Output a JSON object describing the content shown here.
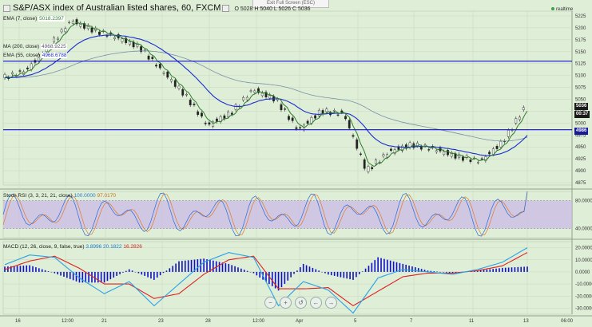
{
  "window": {
    "exit_full_screen": "Exit Full Screen (ESC)",
    "realtime": "realtime"
  },
  "header": {
    "title": "S&P/ASX index of Australian listed shares, 60, FXCM",
    "ohlc": "O 5028 H 5040 L 5026 C 5036"
  },
  "legends": {
    "ema7": {
      "label": "EMA (7, close)",
      "value": "5018.2397"
    },
    "ma200": {
      "label": "MA (200, close)",
      "value": "4968.9225"
    },
    "ema55": {
      "label": "EMA (55, close)",
      "value": "4968.6788"
    },
    "stoch": {
      "label": "Stoch RSI (3, 3, 21, 21, close)",
      "k": "100.0000",
      "d": "97.0170"
    },
    "macd": {
      "label": "MACD (12, 26, close, 9, false, true)",
      "v1": "3.8996",
      "v2": "20.1822",
      "v3": "16.2826"
    }
  },
  "price_axis": {
    "ticks": [
      "5225",
      "5200",
      "5175",
      "5150",
      "5125",
      "5100",
      "5075",
      "5050",
      "5025",
      "5000",
      "4975",
      "4950",
      "4925",
      "4900",
      "4875"
    ],
    "current_price": "5036",
    "countdown": "00:37",
    "line_label": "4986"
  },
  "stoch_axis": {
    "ticks": [
      "80.0000",
      "40.0000"
    ]
  },
  "macd_axis": {
    "ticks": [
      "20.0000",
      "10.0000",
      "0.0000",
      "-10.0000",
      "-20.0000",
      "-30.0000"
    ]
  },
  "time_axis": {
    "labels": [
      "16",
      "12:00",
      "21",
      "23",
      "28",
      "12:00",
      "Apr",
      "5",
      "7",
      "11",
      "13"
    ],
    "end_label": "06:00"
  },
  "nav_buttons": [
    "−",
    "+",
    "↺",
    "←",
    "→"
  ],
  "colors": {
    "background": "#dfeed6",
    "ema7": "#2e7d2e",
    "ema55": "#1a2ecf",
    "ma200": "#7890a8",
    "hline": "#1010c8",
    "stoch_band": "#c9b7e8",
    "macd_line": "#2aa3e8",
    "signal_line": "#e02020",
    "histogram": "#1010c8"
  },
  "chart_data": [
    {
      "type": "candlestick",
      "title": "S&P/ASX index of Australian listed shares, 60, FXCM",
      "x": [
        "16",
        "12:00",
        "21",
        "23",
        "28",
        "12:00",
        "Apr",
        "5",
        "7",
        "11",
        "13"
      ],
      "ylim": [
        4870,
        5235
      ],
      "close_approx": [
        5095,
        5110,
        5160,
        5215,
        5195,
        5180,
        5160,
        5110,
        5060,
        4995,
        5020,
        5070,
        5050,
        4985,
        5025,
        5020,
        4900,
        4940,
        4955,
        4945,
        4930,
        4920,
        4960,
        5036
      ],
      "horizontal_lines": [
        5130,
        4986
      ],
      "series": [
        {
          "name": "EMA (7, close)",
          "last": 5018.2397
        },
        {
          "name": "MA (200, close)",
          "last": 4968.9225
        },
        {
          "name": "EMA (55, close)",
          "last": 4968.6788
        }
      ],
      "grid": true
    },
    {
      "type": "line",
      "title": "Stoch RSI (3, 3, 21, 21, close)",
      "ylim": [
        0,
        100
      ],
      "bands": [
        20,
        80
      ],
      "series": [
        {
          "name": "K",
          "last": 100.0
        },
        {
          "name": "D",
          "last": 97.017
        }
      ]
    },
    {
      "type": "line",
      "title": "MACD (12, 26, close, 9, false, true)",
      "ylim": [
        -35,
        25
      ],
      "series": [
        {
          "name": "MACD",
          "values": [
            6,
            14,
            12,
            -5,
            -18,
            -8,
            -28,
            -10,
            8,
            16,
            12,
            -28,
            -8,
            -15,
            -34,
            -5,
            2,
            0,
            -2,
            2,
            8,
            20
          ]
        },
        {
          "name": "Signal",
          "values": [
            2,
            9,
            13,
            3,
            -10,
            -10,
            -22,
            -18,
            -2,
            10,
            13,
            -14,
            -14,
            -13,
            -28,
            -16,
            -4,
            -1,
            -1,
            1,
            5,
            16
          ]
        }
      ],
      "last_values": [
        3.8996,
        20.1822,
        16.2826
      ]
    }
  ]
}
